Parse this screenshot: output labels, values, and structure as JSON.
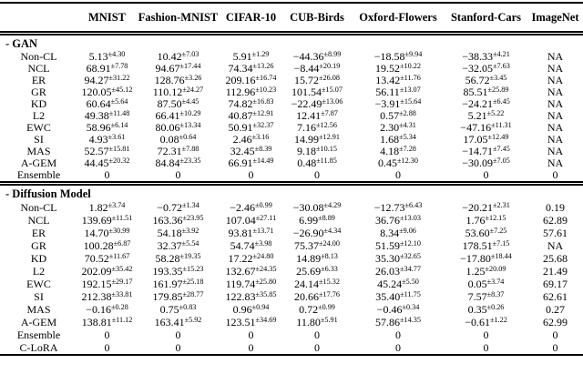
{
  "table": {
    "columns": [
      "",
      "MNIST",
      "Fashion-MNIST",
      "CIFAR-10",
      "CUB-Birds",
      "Oxford-Flowers",
      "Stanford-Cars",
      "ImageNet"
    ],
    "sections": [
      {
        "title": "- GAN",
        "rows": [
          {
            "label": "Non-CL",
            "cells": [
              {
                "v": "5.13",
                "s": "±4.30"
              },
              {
                "v": "10.42",
                "s": "±7.03"
              },
              {
                "v": "5.91",
                "s": "±1.29"
              },
              {
                "v": "−44.36",
                "s": "±8.99"
              },
              {
                "v": "−18.58",
                "s": "±9.94"
              },
              {
                "v": "−38.33",
                "s": "±4.21"
              },
              {
                "v": "NA"
              }
            ]
          },
          {
            "label": "NCL",
            "cells": [
              {
                "v": "68.91",
                "s": "±7.78"
              },
              {
                "v": "94.67",
                "s": "±17.44"
              },
              {
                "v": "74.34",
                "s": "±13.26"
              },
              {
                "v": "−8.44",
                "s": "±20.19"
              },
              {
                "v": "19.52",
                "s": "±10.22"
              },
              {
                "v": "−32.05",
                "s": "±7.63"
              },
              {
                "v": "NA"
              }
            ]
          },
          {
            "label": "ER",
            "cells": [
              {
                "v": "94.27",
                "s": "±31.22"
              },
              {
                "v": "128.76",
                "s": "±3.26"
              },
              {
                "v": "209.16",
                "s": "±16.74"
              },
              {
                "v": "15.72",
                "s": "±26.08"
              },
              {
                "v": "13.42",
                "s": "±11.76"
              },
              {
                "v": "56.72",
                "s": "±3.45"
              },
              {
                "v": "NA"
              }
            ]
          },
          {
            "label": "GR",
            "cells": [
              {
                "v": "120.05",
                "s": "±45.12"
              },
              {
                "v": "110.12",
                "s": "±24.27"
              },
              {
                "v": "112.96",
                "s": "±10.23"
              },
              {
                "v": "101.54",
                "s": "±15.07"
              },
              {
                "v": "56.11",
                "s": "±13.07"
              },
              {
                "v": "85.51",
                "s": "±25.89"
              },
              {
                "v": "NA"
              }
            ]
          },
          {
            "label": "KD",
            "cells": [
              {
                "v": "60.64",
                "s": "±5.64"
              },
              {
                "v": "87.50",
                "s": "±4.45"
              },
              {
                "v": "74.82",
                "s": "±16.83"
              },
              {
                "v": "−22.49",
                "s": "±13.06"
              },
              {
                "v": "−3.91",
                "s": "±15.64"
              },
              {
                "v": "−24.21",
                "s": "±6.45"
              },
              {
                "v": "NA"
              }
            ]
          },
          {
            "label": "L2",
            "cells": [
              {
                "v": "49.38",
                "s": "±11.48"
              },
              {
                "v": "66.41",
                "s": "±10.29"
              },
              {
                "v": "40.87",
                "s": "±12.91"
              },
              {
                "v": "12.41",
                "s": "±7.87"
              },
              {
                "v": "0.57",
                "s": "±2.88"
              },
              {
                "v": "5.21",
                "s": "±5.22"
              },
              {
                "v": "NA"
              }
            ]
          },
          {
            "label": "EWC",
            "cells": [
              {
                "v": "58.96",
                "s": "±6.14"
              },
              {
                "v": "80.06",
                "s": "±13.34"
              },
              {
                "v": "50.91",
                "s": "±32.37"
              },
              {
                "v": "7.16",
                "s": "±12.56"
              },
              {
                "v": "2.30",
                "s": "±4.31"
              },
              {
                "v": "−47.16",
                "s": "±11.31"
              },
              {
                "v": "NA"
              }
            ]
          },
          {
            "label": "SI",
            "cells": [
              {
                "v": "4.93",
                "s": "±3.61"
              },
              {
                "v": "0.08",
                "s": "±0.64"
              },
              {
                "v": "2.46",
                "s": "±3.16"
              },
              {
                "v": "14.99",
                "s": "±12.91"
              },
              {
                "v": "1.68",
                "s": "±5.34"
              },
              {
                "v": "17.05",
                "s": "±12.49"
              },
              {
                "v": "NA"
              }
            ]
          },
          {
            "label": "MAS",
            "cells": [
              {
                "v": "52.57",
                "s": "±15.81"
              },
              {
                "v": "72.31",
                "s": "±7.88"
              },
              {
                "v": "32.45",
                "s": "±8.39"
              },
              {
                "v": "9.18",
                "s": "±10.15"
              },
              {
                "v": "4.18",
                "s": "±7.28"
              },
              {
                "v": "−14.71",
                "s": "±7.45"
              },
              {
                "v": "NA"
              }
            ]
          },
          {
            "label": "A-GEM",
            "cells": [
              {
                "v": "44.45",
                "s": "±20.32"
              },
              {
                "v": "84.84",
                "s": "±23.35"
              },
              {
                "v": "66.91",
                "s": "±14.49"
              },
              {
                "v": "0.48",
                "s": "±11.85"
              },
              {
                "v": "0.45",
                "s": "±12.30"
              },
              {
                "v": "−30.09",
                "s": "±7.05"
              },
              {
                "v": "NA"
              }
            ]
          },
          {
            "label": "Ensemble",
            "cells": [
              {
                "v": "0"
              },
              {
                "v": "0"
              },
              {
                "v": "0"
              },
              {
                "v": "0"
              },
              {
                "v": "0"
              },
              {
                "v": "0"
              },
              {
                "v": "0"
              }
            ]
          }
        ]
      },
      {
        "title": "- Diffusion Model",
        "rows": [
          {
            "label": "Non-CL",
            "cells": [
              {
                "v": "1.82",
                "s": "±3.74"
              },
              {
                "v": "−0.72",
                "s": "±1.34"
              },
              {
                "v": "−2.46",
                "s": "±0.99"
              },
              {
                "v": "−30.08",
                "s": "±4.29"
              },
              {
                "v": "−12.73",
                "s": "±6.43"
              },
              {
                "v": "−20.21",
                "s": "±2.31"
              },
              {
                "v": "0.19"
              }
            ]
          },
          {
            "label": "NCL",
            "cells": [
              {
                "v": "139.69",
                "s": "±11.51"
              },
              {
                "v": "163.36",
                "s": "±23.95"
              },
              {
                "v": "107.04",
                "s": "±27.11"
              },
              {
                "v": "6.99",
                "s": "±8.89"
              },
              {
                "v": "36.76",
                "s": "±13.03"
              },
              {
                "v": "1.76",
                "s": "±12.15"
              },
              {
                "v": "62.89"
              }
            ]
          },
          {
            "label": "ER",
            "cells": [
              {
                "v": "14.70",
                "s": "±30.99"
              },
              {
                "v": "54.18",
                "s": "±3.92"
              },
              {
                "v": "93.81",
                "s": "±13.71"
              },
              {
                "v": "−26.90",
                "s": "±4.34"
              },
              {
                "v": "8.34",
                "s": "±9.06"
              },
              {
                "v": "53.60",
                "s": "±7.25"
              },
              {
                "v": "57.61"
              }
            ]
          },
          {
            "label": "GR",
            "cells": [
              {
                "v": "100.28",
                "s": "±6.87"
              },
              {
                "v": "32.37",
                "s": "±5.54"
              },
              {
                "v": "54.74",
                "s": "±3.98"
              },
              {
                "v": "75.37",
                "s": "±24.00"
              },
              {
                "v": "51.59",
                "s": "±12.10"
              },
              {
                "v": "178.51",
                "s": "±7.15"
              },
              {
                "v": "NA"
              }
            ]
          },
          {
            "label": "KD",
            "cells": [
              {
                "v": "70.52",
                "s": "±11.67"
              },
              {
                "v": "58.28",
                "s": "±19.35"
              },
              {
                "v": "17.22",
                "s": "±24.80"
              },
              {
                "v": "14.89",
                "s": "±8.13"
              },
              {
                "v": "35.30",
                "s": "±32.65"
              },
              {
                "v": "−17.80",
                "s": "±18.44"
              },
              {
                "v": "25.68"
              }
            ]
          },
          {
            "label": "L2",
            "cells": [
              {
                "v": "202.09",
                "s": "±35.42"
              },
              {
                "v": "193.35",
                "s": "±15.23"
              },
              {
                "v": "132.67",
                "s": "±24.35"
              },
              {
                "v": "25.69",
                "s": "±6.33"
              },
              {
                "v": "26.03",
                "s": "±34.77"
              },
              {
                "v": "1.25",
                "s": "±20.09"
              },
              {
                "v": "21.49"
              }
            ]
          },
          {
            "label": "EWC",
            "cells": [
              {
                "v": "192.15",
                "s": "±29.17"
              },
              {
                "v": "161.97",
                "s": "±25.18"
              },
              {
                "v": "119.74",
                "s": "±25.80"
              },
              {
                "v": "24.14",
                "s": "±15.32"
              },
              {
                "v": "45.24",
                "s": "±5.50"
              },
              {
                "v": "0.05",
                "s": "±3.74"
              },
              {
                "v": "69.17"
              }
            ]
          },
          {
            "label": "SI",
            "cells": [
              {
                "v": "212.38",
                "s": "±33.81"
              },
              {
                "v": "179.85",
                "s": "±28.77"
              },
              {
                "v": "122.83",
                "s": "±35.85"
              },
              {
                "v": "20.66",
                "s": "±17.76"
              },
              {
                "v": "35.40",
                "s": "±11.75"
              },
              {
                "v": "7.57",
                "s": "±8.37"
              },
              {
                "v": "62.61"
              }
            ]
          },
          {
            "label": "MAS",
            "cells": [
              {
                "v": "−0.16",
                "s": "±0.28"
              },
              {
                "v": "0.75",
                "s": "±0.83"
              },
              {
                "v": "0.96",
                "s": "±0.94"
              },
              {
                "v": "0.72",
                "s": "±0.99"
              },
              {
                "v": "−0.46",
                "s": "±0.34"
              },
              {
                "v": "0.35",
                "s": "±0.26"
              },
              {
                "v": "0.27"
              }
            ]
          },
          {
            "label": "A-GEM",
            "cells": [
              {
                "v": "138.81",
                "s": "±11.12"
              },
              {
                "v": "163.41",
                "s": "±5.92"
              },
              {
                "v": "123.51",
                "s": "±34.69"
              },
              {
                "v": "11.80",
                "s": "±5.91"
              },
              {
                "v": "57.86",
                "s": "±14.35"
              },
              {
                "v": "−0.61",
                "s": "±1.22"
              },
              {
                "v": "62.99"
              }
            ]
          },
          {
            "label": "Ensemble",
            "cells": [
              {
                "v": "0"
              },
              {
                "v": "0"
              },
              {
                "v": "0"
              },
              {
                "v": "0"
              },
              {
                "v": "0"
              },
              {
                "v": "0"
              },
              {
                "v": "0"
              }
            ]
          },
          {
            "label": "C-LoRA",
            "cells": [
              {
                "v": "0"
              },
              {
                "v": "0"
              },
              {
                "v": "0"
              },
              {
                "v": "0"
              },
              {
                "v": "0"
              },
              {
                "v": "0"
              },
              {
                "v": "0"
              }
            ]
          }
        ]
      }
    ]
  }
}
